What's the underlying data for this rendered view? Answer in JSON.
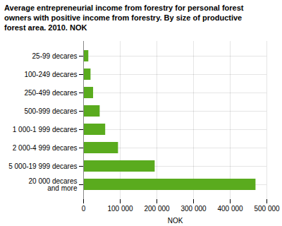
{
  "chart_data": {
    "type": "bar",
    "orientation": "horizontal",
    "title": "Average entrepreneurial income from forestry for personal forest\nowners with positive income from forestry. By size of productive\nforest area. 2010. NOK",
    "categories": [
      "25-99 decares",
      "100-249 decares",
      "250-499 decares",
      "500-999 decares",
      "1 000-1 999 decares",
      "2 000-4 999 decares",
      "5 000-19 999 decares",
      "20 000 decares\nand more"
    ],
    "values": [
      14000,
      20000,
      27000,
      45000,
      60000,
      95000,
      195000,
      470000
    ],
    "color": "#5aab1e",
    "xlabel": "NOK",
    "xlim": [
      0,
      500000
    ],
    "xticks": [
      0,
      {
        "value": 100000,
        "label": "100 000"
      },
      {
        "value": 200000,
        "label": "200 000"
      },
      {
        "value": 300000,
        "label": "300 000"
      },
      {
        "value": 400000,
        "label": "400 000"
      },
      {
        "value": 500000,
        "label": "500 000"
      }
    ],
    "grid": true
  }
}
